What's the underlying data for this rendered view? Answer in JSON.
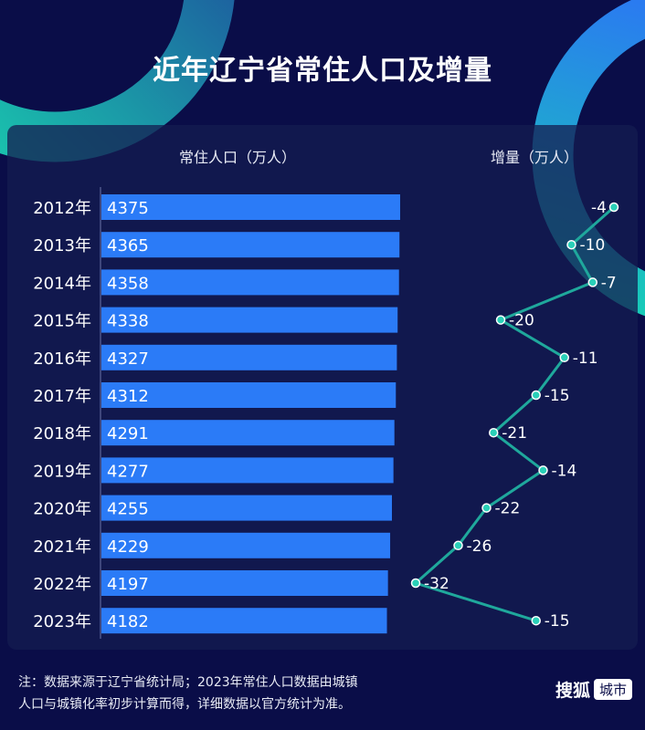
{
  "title": "近年辽宁省常住人口及增量",
  "chart_data": [
    {
      "type": "bar",
      "orientation": "horizontal",
      "title": "常住人口（万人）",
      "categories": [
        "2012年",
        "2013年",
        "2014年",
        "2015年",
        "2016年",
        "2017年",
        "2018年",
        "2019年",
        "2020年",
        "2021年",
        "2022年",
        "2023年"
      ],
      "values": [
        4375,
        4365,
        4358,
        4338,
        4327,
        4312,
        4291,
        4277,
        4255,
        4229,
        4197,
        4182
      ],
      "xlim": [
        0,
        4375
      ],
      "bar_color": "#2b7bf7",
      "grid": false
    },
    {
      "type": "line",
      "orientation": "vertical",
      "title": "增量（万人）",
      "categories": [
        "2012年",
        "2013年",
        "2014年",
        "2015年",
        "2016年",
        "2017年",
        "2018年",
        "2019年",
        "2020年",
        "2021年",
        "2022年",
        "2023年"
      ],
      "values": [
        -4,
        -10,
        -7,
        -20,
        -11,
        -15,
        -21,
        -14,
        -22,
        -26,
        -32,
        -15
      ],
      "line_color": "#1fa89c",
      "marker_color": "#2ad0b8",
      "grid": false
    }
  ],
  "footer": {
    "note_line1": "注：数据来源于辽宁省统计局；2023年常住人口数据由城镇",
    "note_line2": "人口与城镇化率初步计算而得，详细数据以官方统计为准。",
    "logo_text": "搜狐",
    "logo_tag": "城市"
  },
  "colors": {
    "background": "#0a0d48",
    "accent_teal": "#1fd1b0",
    "accent_blue": "#2b7bf7"
  }
}
